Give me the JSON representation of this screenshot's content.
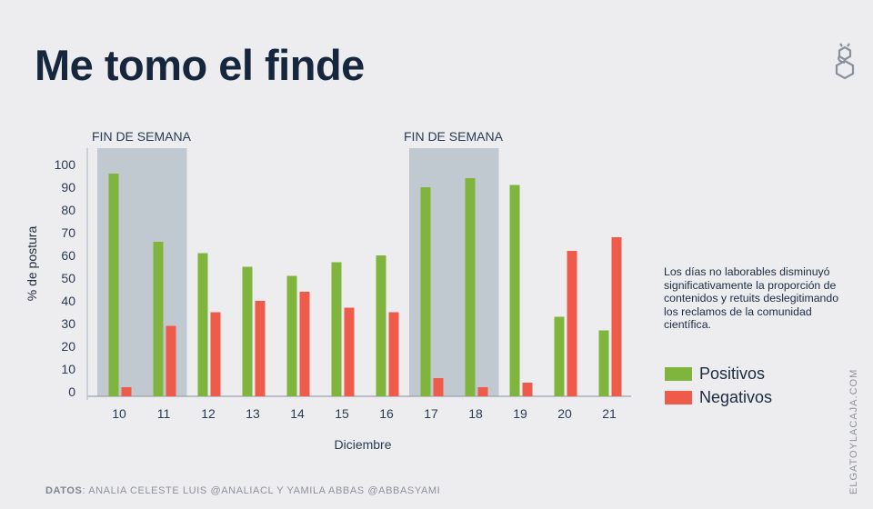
{
  "header": {
    "title": "Me tomo el finde",
    "logo_icon": "cat-hexagon-logo-icon"
  },
  "annotation": "Los días no laborables disminuyó significativamente la proporción de contenidos y retuits deslegitimando los reclamos de la comunidad científica.",
  "legend": [
    {
      "label": "Positivos",
      "color": "#7fb43d"
    },
    {
      "label": "Negativos",
      "color": "#ef5b4b"
    }
  ],
  "footer": {
    "prefix": "DATOS",
    "text": ": ANALIA CELESTE LUIS @ANALIACL Y YAMILA ABBAS @ABBASYAMI"
  },
  "site": "ELGATOYLACAJA.COM",
  "chart_data": {
    "type": "bar",
    "title": "Me tomo el finde",
    "xlabel": "Diciembre",
    "ylabel": "% de postura",
    "ylim": [
      0,
      100
    ],
    "yticks": [
      0,
      10,
      20,
      30,
      40,
      50,
      60,
      70,
      80,
      90,
      100
    ],
    "categories": [
      "10",
      "11",
      "12",
      "13",
      "14",
      "15",
      "16",
      "17",
      "18",
      "19",
      "20",
      "21"
    ],
    "series": [
      {
        "name": "Positivos",
        "color": "#7fb43d",
        "values": [
          96,
          66,
          61,
          55,
          51,
          57,
          60,
          90,
          94,
          91,
          33,
          27
        ]
      },
      {
        "name": "Negativos",
        "color": "#ef5b4b",
        "values": [
          2,
          29,
          35,
          40,
          44,
          37,
          35,
          6,
          2,
          4,
          62,
          68
        ]
      }
    ],
    "highlights": [
      {
        "label": "FIN DE SEMANA",
        "from": "10",
        "to": "11",
        "color": "#c0c9cf"
      },
      {
        "label": "FIN DE SEMANA",
        "from": "17",
        "to": "18",
        "color": "#c0c9cf"
      }
    ],
    "grid": false,
    "legend_position": "right"
  }
}
